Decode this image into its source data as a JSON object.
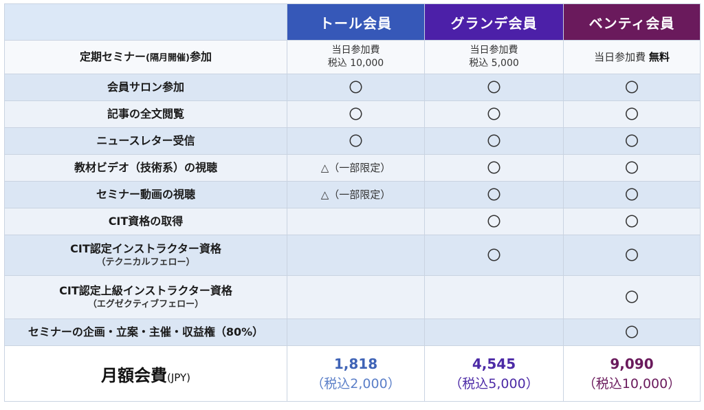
{
  "columns": {
    "tall": "トール会員",
    "grande": "グランデ会員",
    "venti": "ベンティ会員"
  },
  "rows": [
    {
      "feature": "定期セミナー",
      "feature_small": "(隔月開催)",
      "feature_tail": "参加",
      "tall": [
        "当日参加費",
        "税込 10,000"
      ],
      "grande": [
        "当日参加費",
        "税込 5,000"
      ],
      "venti_prefix": "当日参加費",
      "venti_bold": "無料"
    },
    {
      "feature": "会員サロン参加",
      "tall": "〇",
      "grande": "〇",
      "venti": "〇"
    },
    {
      "feature": "記事の全文閲覧",
      "tall": "〇",
      "grande": "〇",
      "venti": "〇"
    },
    {
      "feature": "ニュースレター受信",
      "tall": "〇",
      "grande": "〇",
      "venti": "〇"
    },
    {
      "feature": "教材ビデオ（技術系）の視聴",
      "tall": "△（一部限定）",
      "grande": "〇",
      "venti": "〇"
    },
    {
      "feature": "セミナー動画の視聴",
      "tall": "△（一部限定）",
      "grande": "〇",
      "venti": "〇"
    },
    {
      "feature": "CIT資格の取得",
      "tall": "",
      "grande": "〇",
      "venti": "〇"
    },
    {
      "feature": "CIT認定インストラクター資格",
      "feature_sub": "（テクニカルフェロー）",
      "tall": "",
      "grande": "〇",
      "venti": "〇"
    },
    {
      "feature": "CIT認定上級インストラクター資格",
      "feature_sub": "（エグゼクティブフェロー）",
      "tall": "",
      "grande": "",
      "venti": "〇"
    },
    {
      "feature": "セミナーの企画・立案・主催・収益権（80%）",
      "tall": "",
      "grande": "",
      "venti": "〇"
    }
  ],
  "fee": {
    "label": "月額会費",
    "unit": "(JPY)",
    "tall": {
      "price": "1,818",
      "tax": "（税込2,000）"
    },
    "grande": {
      "price": "4,545",
      "tax": "（税込5,000）"
    },
    "venti": {
      "price": "9,090",
      "tax": "（税込10,000）"
    }
  },
  "colors": {
    "tall": "#3658b8",
    "grande": "#4c20a8",
    "venti": "#6a1a5c",
    "header_corner": "#dce8f7",
    "row_alt": "#dbe6f4"
  }
}
